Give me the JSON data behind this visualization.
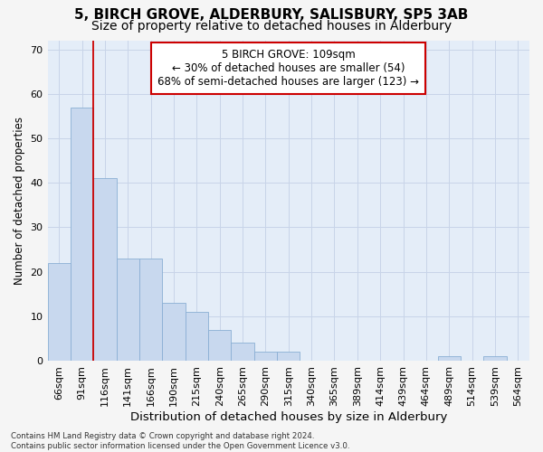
{
  "title1": "5, BIRCH GROVE, ALDERBURY, SALISBURY, SP5 3AB",
  "title2": "Size of property relative to detached houses in Alderbury",
  "xlabel": "Distribution of detached houses by size in Alderbury",
  "ylabel": "Number of detached properties",
  "categories": [
    "66sqm",
    "91sqm",
    "116sqm",
    "141sqm",
    "166sqm",
    "190sqm",
    "215sqm",
    "240sqm",
    "265sqm",
    "290sqm",
    "315sqm",
    "340sqm",
    "365sqm",
    "389sqm",
    "414sqm",
    "439sqm",
    "464sqm",
    "489sqm",
    "514sqm",
    "539sqm",
    "564sqm"
  ],
  "values": [
    22,
    57,
    41,
    23,
    23,
    13,
    11,
    7,
    4,
    2,
    2,
    0,
    0,
    0,
    0,
    0,
    0,
    1,
    0,
    1,
    0
  ],
  "bar_color": "#c8d8ee",
  "bar_edge_color": "#8aafd4",
  "annotation_text": "5 BIRCH GROVE: 109sqm\n← 30% of detached houses are smaller (54)\n68% of semi-detached houses are larger (123) →",
  "annotation_box_color": "#ffffff",
  "annotation_box_edge_color": "#cc0000",
  "vline_color": "#cc0000",
  "vline_x_index": 1.5,
  "ylim": [
    0,
    72
  ],
  "yticks": [
    0,
    10,
    20,
    30,
    40,
    50,
    60,
    70
  ],
  "grid_color": "#c8d4e8",
  "bg_color": "#e4edf8",
  "fig_bg_color": "#f5f5f5",
  "footnote": "Contains HM Land Registry data © Crown copyright and database right 2024.\nContains public sector information licensed under the Open Government Licence v3.0.",
  "title1_fontsize": 11,
  "title2_fontsize": 10,
  "xlabel_fontsize": 9.5,
  "ylabel_fontsize": 8.5,
  "tick_fontsize": 8,
  "annot_fontsize": 8.5
}
